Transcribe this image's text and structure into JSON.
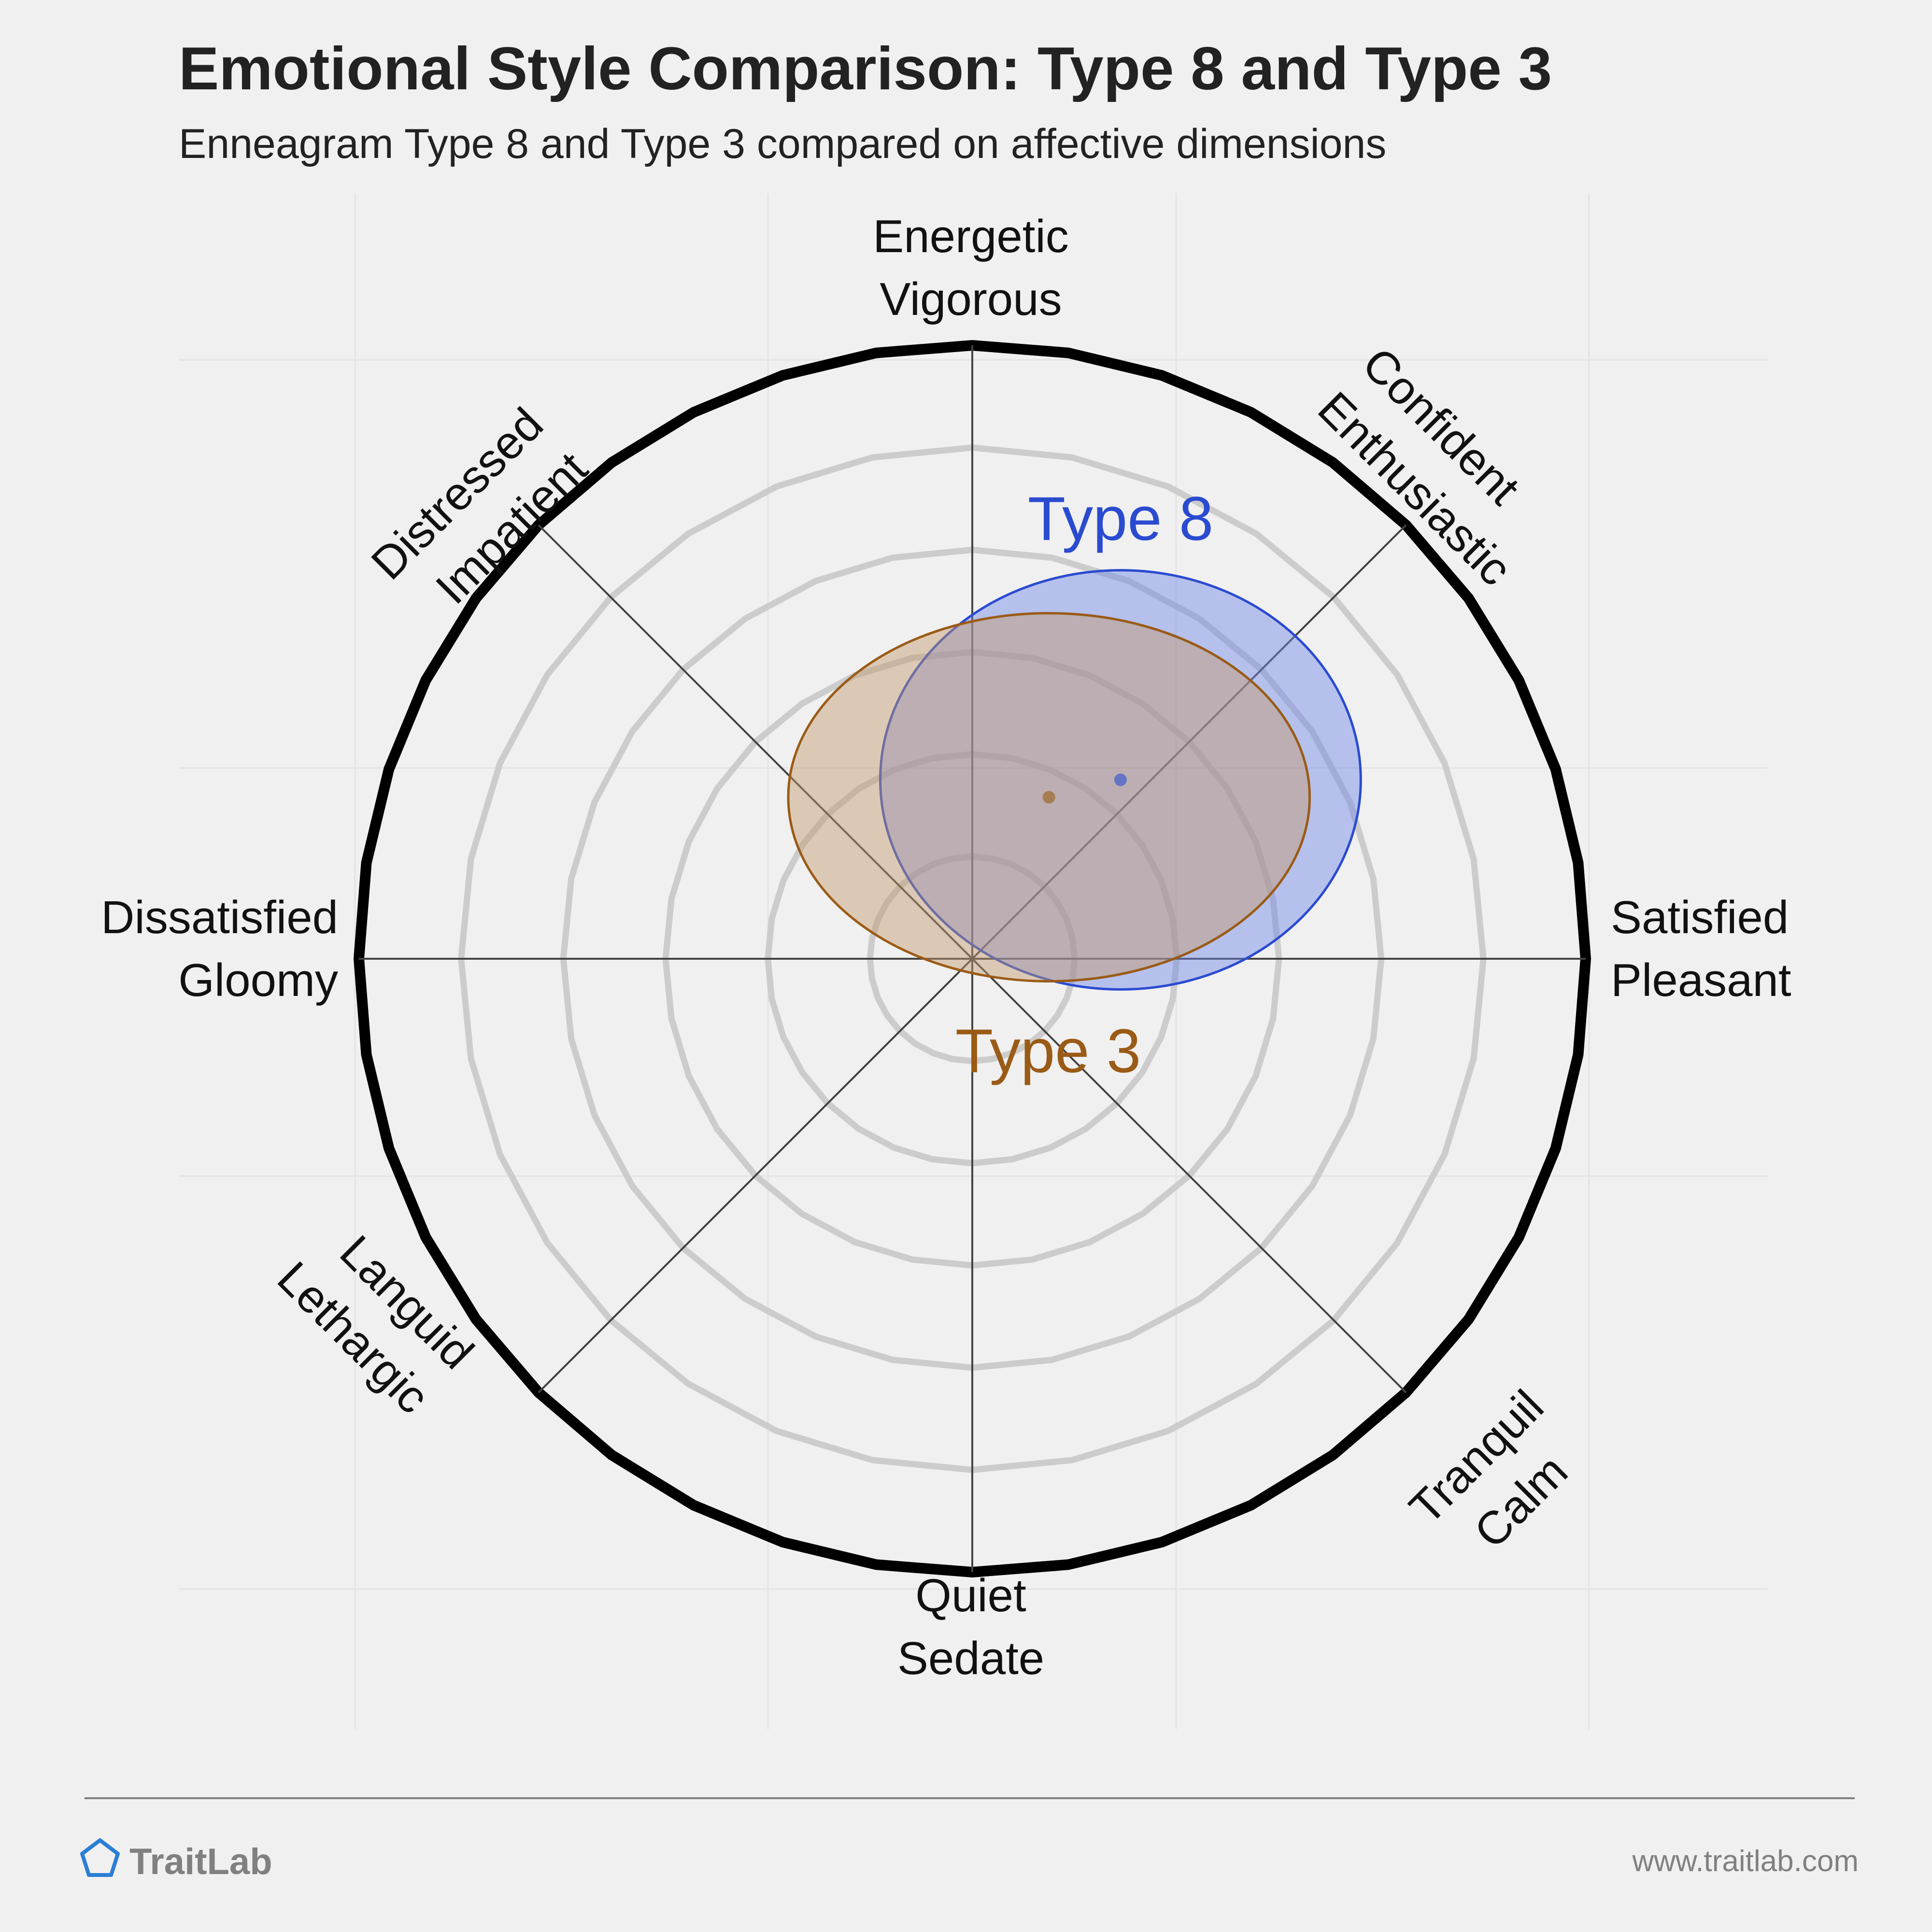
{
  "chart_data": {
    "type": "scatter",
    "title": "Emotional Style Comparison: Type 8 and Type 3",
    "subtitle": "Enneagram Type 8 and Type 3 compared on affective dimensions",
    "axes": [
      {
        "lines": [
          "Energetic",
          "Vigorous"
        ]
      },
      {
        "lines": [
          "Confident",
          "Enthusiastic"
        ]
      },
      {
        "lines": [
          "Satisfied",
          "Pleasant"
        ]
      },
      {
        "lines": [
          "Tranquil",
          "Calm"
        ]
      },
      {
        "lines": [
          "Quiet",
          "Sedate"
        ]
      },
      {
        "lines": [
          "Languid",
          "Lethargic"
        ]
      },
      {
        "lines": [
          "Dissatisfied",
          "Gloomy"
        ]
      },
      {
        "lines": [
          "Distressed",
          "Impatient"
        ]
      }
    ],
    "x_label_pair": [
      "Dissatisfied / Gloomy",
      "Satisfied / Pleasant"
    ],
    "y_label_pair": [
      "Quiet / Sedate",
      "Energetic / Vigorous"
    ],
    "range": [
      -6,
      6
    ],
    "rings": [
      1,
      2,
      3,
      4,
      5,
      6
    ],
    "series": [
      {
        "name": "Type 8",
        "x": 1.45,
        "y": 1.75,
        "spread_x": 2.35,
        "spread_y": 2.05,
        "color": "#2a4bd0",
        "fill": "#6f85e6"
      },
      {
        "name": "Type 3",
        "x": 0.75,
        "y": 1.58,
        "spread_x": 2.55,
        "spread_y": 1.8,
        "color": "#9a5b16",
        "fill": "#c49a6c"
      }
    ]
  },
  "footer": {
    "brand": "TraitLab",
    "url": "www.traitlab.com"
  },
  "colors": {
    "background": "#f0f0f0",
    "brand_icon": "#2a7fd4",
    "ring": "#cccccc",
    "outer_ring": "#000000",
    "axis": "#444444"
  },
  "icons": {
    "brand": "pentagon-logo-icon"
  }
}
